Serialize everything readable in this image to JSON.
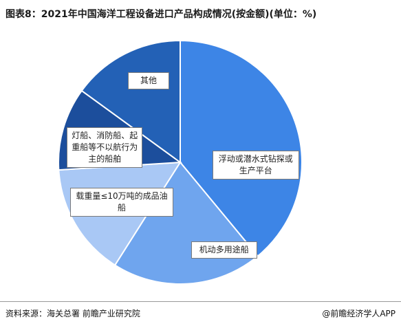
{
  "title": "图表8：2021年中国海洋工程设备进口产品构成情况(按金额)(单位：%)",
  "footer": {
    "source": "资料来源：海关总署  前瞻产业研究院",
    "brand": "@前瞻经济学人APP"
  },
  "chart_data": {
    "type": "pie",
    "categories": [
      "浮动或潜水式钻探或生产平台",
      "机动多用途船",
      "载重量≤10万吨的成品油船",
      "灯船、消防船、起重船等不以航行为主的船舶",
      "其他"
    ],
    "values": [
      39,
      20,
      15,
      11,
      15
    ],
    "colors": [
      "#3d85e6",
      "#6fa5ee",
      "#a9c8f5",
      "#1c4e9c",
      "#2361b6"
    ],
    "legend": "none"
  }
}
